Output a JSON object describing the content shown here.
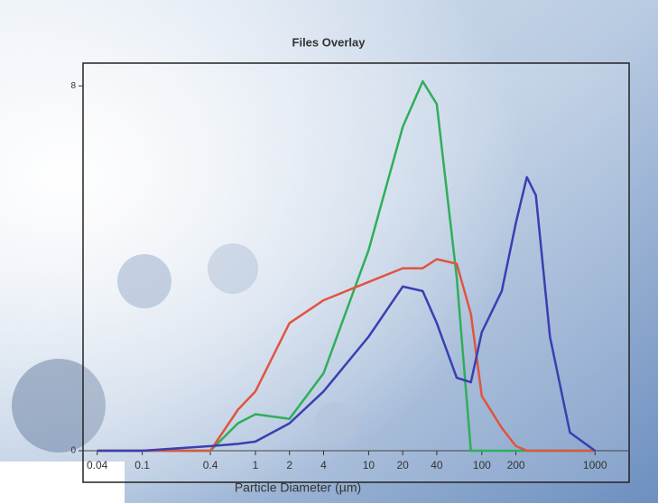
{
  "chart_data": {
    "type": "line",
    "title": "Files Overlay",
    "x_label": "Particle Diameter (µm)",
    "xscale": "log",
    "x": [
      0.04,
      0.1,
      0.4,
      0.7,
      1,
      2,
      4,
      10,
      20,
      30,
      40,
      60,
      80,
      100,
      150,
      200,
      250,
      300,
      400,
      600,
      1000
    ],
    "series": [
      {
        "color": "#2fae5a",
        "values": [
          0,
          0,
          0,
          0.6,
          0.8,
          0.7,
          1.7,
          4.4,
          7.1,
          8.1,
          7.6,
          3.8,
          0,
          0,
          0,
          0,
          0,
          0,
          0,
          0,
          0
        ]
      },
      {
        "color": "#e0543f",
        "values": [
          0,
          0,
          0,
          0.9,
          1.3,
          2.8,
          3.3,
          3.7,
          4.0,
          4.0,
          4.2,
          4.1,
          3.0,
          1.2,
          0.5,
          0.1,
          0,
          0,
          0,
          0,
          0
        ]
      },
      {
        "color": "#3a3fb0",
        "values": [
          0,
          0,
          0.1,
          0.15,
          0.2,
          0.6,
          1.3,
          2.5,
          3.6,
          3.5,
          2.8,
          1.6,
          1.5,
          2.6,
          3.5,
          5.0,
          6.0,
          5.6,
          2.5,
          0.4,
          0
        ]
      }
    ],
    "xlim": [
      0.03,
      2000
    ],
    "xticks": [
      0.04,
      0.1,
      0.4,
      1,
      2,
      4,
      10,
      20,
      40,
      100,
      200,
      1000
    ],
    "ylim": [
      0,
      8.5
    ],
    "yticks": [
      0,
      8
    ]
  }
}
